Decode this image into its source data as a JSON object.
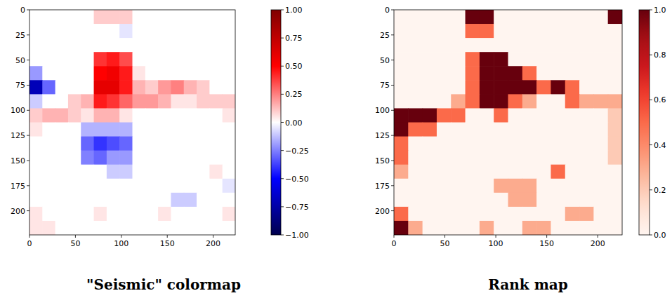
{
  "chart_data": [
    {
      "type": "heatmap",
      "title": "\"Seismic\" colormap",
      "color": "seismic",
      "xlim": [
        0,
        224
      ],
      "ylim": [
        224,
        0
      ],
      "xticks": [
        0,
        50,
        100,
        150,
        200
      ],
      "yticks": [
        0,
        25,
        50,
        75,
        100,
        125,
        150,
        175,
        200
      ],
      "colorbar_range": [
        -1,
        1
      ],
      "colorbar_ticks": [
        {
          "value": 1,
          "label": "1.00"
        },
        {
          "value": 0.75,
          "label": "0.75"
        },
        {
          "value": 0.5,
          "label": "0.50"
        },
        {
          "value": 0.25,
          "label": "0.25"
        },
        {
          "value": 0,
          "label": "0.00"
        },
        {
          "value": -0.25,
          "label": "−0.25"
        },
        {
          "value": -0.5,
          "label": "−0.50"
        },
        {
          "value": -0.75,
          "label": "−0.75"
        },
        {
          "value": -1,
          "label": "−1.00"
        }
      ],
      "cells": [
        [
          0,
          0,
          0,
          0,
          0,
          0.1,
          0.1,
          0.1,
          0,
          0,
          0,
          0,
          0,
          0,
          0,
          0
        ],
        [
          0,
          0,
          0,
          0,
          0,
          0,
          0,
          -0.05,
          0,
          0,
          0,
          0,
          0,
          0,
          0,
          0
        ],
        [
          0,
          0,
          0,
          0,
          0,
          0,
          0,
          0,
          0,
          0,
          0,
          0,
          0,
          0,
          0,
          0
        ],
        [
          0,
          0,
          0,
          0,
          0,
          0.4,
          0.45,
          0.35,
          0,
          0,
          0,
          0,
          0,
          0,
          0,
          0
        ],
        [
          -0.2,
          0,
          0,
          0,
          0,
          0.5,
          0.55,
          0.45,
          0.05,
          0,
          0,
          0,
          0,
          0,
          0,
          0
        ],
        [
          -0.7,
          -0.3,
          0,
          0,
          0,
          0.6,
          0.6,
          0.45,
          0.15,
          0.1,
          0.2,
          0.25,
          0.15,
          0.1,
          0,
          0
        ],
        [
          -0.1,
          0,
          0,
          0.1,
          0.15,
          0.45,
          0.4,
          0.3,
          0.2,
          0.2,
          0.15,
          0.05,
          0.05,
          0.1,
          0.1,
          0.1
        ],
        [
          0.1,
          0.15,
          0.15,
          0.1,
          0.05,
          0.15,
          0.15,
          0.05,
          0,
          0,
          0,
          0,
          0,
          0,
          0,
          0.05
        ],
        [
          0.05,
          0,
          0,
          0,
          -0.15,
          -0.15,
          -0.15,
          -0.15,
          0,
          0,
          0,
          0,
          0,
          0,
          0,
          0
        ],
        [
          0,
          0,
          0,
          0,
          -0.3,
          -0.4,
          -0.35,
          -0.3,
          0,
          0,
          0,
          0,
          0,
          0,
          0,
          0
        ],
        [
          0,
          0,
          0,
          0,
          -0.25,
          -0.3,
          -0.2,
          -0.2,
          0,
          0,
          0,
          0,
          0,
          0,
          0,
          0
        ],
        [
          0,
          0,
          0,
          0,
          0,
          0,
          -0.1,
          -0.1,
          0,
          0,
          0,
          0,
          0,
          0,
          0.05,
          0
        ],
        [
          0,
          0,
          0,
          0,
          0,
          0,
          0,
          0,
          0,
          0,
          0,
          0,
          0,
          0,
          0,
          -0.05
        ],
        [
          0,
          0,
          0,
          0,
          0,
          0,
          0,
          0,
          0,
          0,
          0,
          -0.1,
          -0.1,
          0,
          0,
          0
        ],
        [
          0.05,
          0,
          0,
          0,
          0,
          0.05,
          0,
          0,
          0,
          0,
          0.05,
          0,
          0,
          0,
          0,
          0.05
        ],
        [
          0.05,
          0.05,
          0,
          0,
          0,
          0,
          0,
          0,
          0,
          0,
          0,
          0,
          0,
          0,
          0,
          0
        ]
      ]
    },
    {
      "type": "heatmap",
      "title": "Rank map",
      "color": "Reds",
      "xlim": [
        0,
        224
      ],
      "ylim": [
        224,
        0
      ],
      "xticks": [
        0,
        50,
        100,
        150,
        200
      ],
      "yticks": [
        0,
        25,
        50,
        75,
        100,
        125,
        150,
        175,
        200
      ],
      "colorbar_range": [
        0,
        1
      ],
      "colorbar_ticks": [
        {
          "value": 0,
          "label": "0.0"
        },
        {
          "value": 0.2,
          "label": "0.2"
        },
        {
          "value": 0.4,
          "label": "0.4"
        },
        {
          "value": 0.6,
          "label": "0.6"
        },
        {
          "value": 0.8,
          "label": "0.8"
        },
        {
          "value": 1,
          "label": "1.0"
        }
      ],
      "cells": [
        [
          0,
          0,
          0,
          0,
          0,
          1,
          1,
          0,
          0,
          0,
          0,
          0,
          0,
          0,
          0,
          1
        ],
        [
          0,
          0,
          0,
          0,
          0,
          0.5,
          0.5,
          0,
          0,
          0,
          0,
          0,
          0,
          0,
          0,
          0
        ],
        [
          0,
          0,
          0,
          0,
          0,
          0,
          0,
          0,
          0,
          0,
          0,
          0,
          0,
          0,
          0,
          0
        ],
        [
          0,
          0,
          0,
          0,
          0,
          0.5,
          1,
          1,
          0,
          0,
          0,
          0,
          0,
          0,
          0,
          0
        ],
        [
          0,
          0,
          0,
          0,
          0,
          0.5,
          1,
          1,
          1,
          0.5,
          0,
          0,
          0,
          0,
          0,
          0
        ],
        [
          0,
          0,
          0,
          0,
          0,
          0.5,
          1,
          1,
          1,
          1,
          0.5,
          1,
          0.5,
          0,
          0,
          0
        ],
        [
          0,
          0,
          0,
          0,
          0.3,
          0.5,
          1,
          1,
          0.5,
          0.3,
          0,
          0,
          0.5,
          0.3,
          0.3,
          0.3
        ],
        [
          1,
          1,
          1,
          0.5,
          0.5,
          0,
          0,
          0.5,
          0,
          0,
          0,
          0,
          0,
          0,
          0,
          0.2
        ],
        [
          1,
          0.5,
          0.5,
          0,
          0,
          0,
          0,
          0,
          0,
          0,
          0,
          0,
          0,
          0,
          0,
          0.2
        ],
        [
          0.5,
          0,
          0,
          0,
          0,
          0,
          0,
          0,
          0,
          0,
          0,
          0,
          0,
          0,
          0,
          0.2
        ],
        [
          0.5,
          0,
          0,
          0,
          0,
          0,
          0,
          0,
          0,
          0,
          0,
          0,
          0,
          0,
          0,
          0.2
        ],
        [
          0.3,
          0,
          0,
          0,
          0,
          0,
          0,
          0,
          0,
          0,
          0,
          0.5,
          0,
          0,
          0,
          0
        ],
        [
          0,
          0,
          0,
          0,
          0,
          0,
          0,
          0.3,
          0.3,
          0.3,
          0,
          0,
          0,
          0,
          0,
          0
        ],
        [
          0,
          0,
          0,
          0,
          0,
          0,
          0,
          0,
          0.3,
          0.3,
          0,
          0,
          0,
          0,
          0,
          0
        ],
        [
          0.5,
          0,
          0,
          0,
          0,
          0,
          0,
          0,
          0,
          0,
          0,
          0,
          0.3,
          0.3,
          0,
          0
        ],
        [
          1,
          0.3,
          0,
          0,
          0,
          0,
          0.3,
          0,
          0,
          0.3,
          0.3,
          0,
          0,
          0,
          0,
          0
        ]
      ]
    }
  ]
}
